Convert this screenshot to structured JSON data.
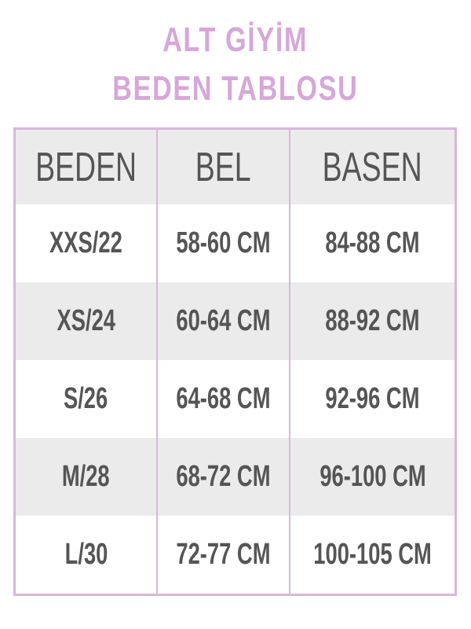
{
  "title": {
    "line1": "ALT GİYİM",
    "line2": "BEDEN TABLOSU"
  },
  "colors": {
    "title": "#d6a7d9",
    "border": "#d9b6da",
    "text": "#555555",
    "stripe": "#ebebeb"
  },
  "table": {
    "headers": [
      "BEDEN",
      "BEL",
      "BASEN"
    ],
    "rows": [
      [
        "XXS/22",
        "58-60 CM",
        "84-88 CM"
      ],
      [
        "XS/24",
        "60-64 CM",
        "88-92 CM"
      ],
      [
        "S/26",
        "64-68 CM",
        "92-96 CM"
      ],
      [
        "M/28",
        "68-72 CM",
        "96-100 CM"
      ],
      [
        "L/30",
        "72-77 CM",
        "100-105 CM"
      ]
    ]
  }
}
